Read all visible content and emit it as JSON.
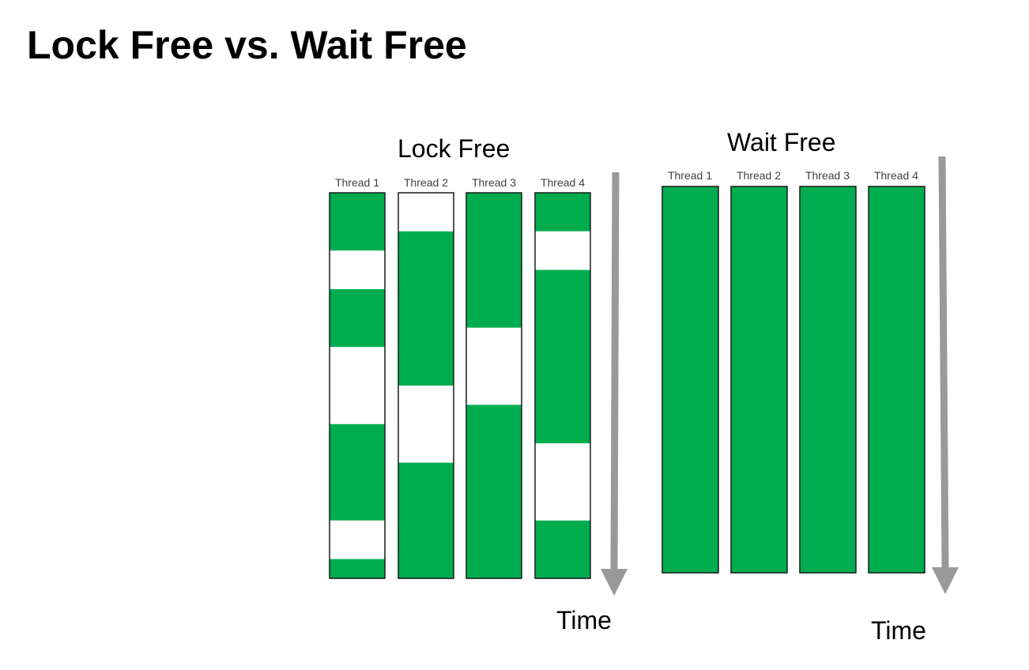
{
  "slide": {
    "title": "Lock Free vs. Wait Free"
  },
  "colors": {
    "running": "#00ad4e",
    "idle": "#ffffff",
    "border": "#1a1a1a",
    "time_arrow": "#999999"
  },
  "lock_free": {
    "title": "Lock Free",
    "time_label": "Time",
    "threads": [
      {
        "label": "Thread 1",
        "segments": [
          {
            "state": "running",
            "start": 0.0,
            "end": 0.15
          },
          {
            "state": "idle",
            "start": 0.15,
            "end": 0.25
          },
          {
            "state": "running",
            "start": 0.25,
            "end": 0.4
          },
          {
            "state": "idle",
            "start": 0.4,
            "end": 0.6
          },
          {
            "state": "running",
            "start": 0.6,
            "end": 0.85
          },
          {
            "state": "idle",
            "start": 0.85,
            "end": 0.95
          },
          {
            "state": "running",
            "start": 0.95,
            "end": 1.0
          }
        ]
      },
      {
        "label": "Thread 2",
        "segments": [
          {
            "state": "idle",
            "start": 0.0,
            "end": 0.1
          },
          {
            "state": "running",
            "start": 0.1,
            "end": 0.5
          },
          {
            "state": "idle",
            "start": 0.5,
            "end": 0.7
          },
          {
            "state": "running",
            "start": 0.7,
            "end": 1.0
          }
        ]
      },
      {
        "label": "Thread 3",
        "segments": [
          {
            "state": "running",
            "start": 0.0,
            "end": 0.35
          },
          {
            "state": "idle",
            "start": 0.35,
            "end": 0.55
          },
          {
            "state": "running",
            "start": 0.55,
            "end": 1.0
          }
        ]
      },
      {
        "label": "Thread 4",
        "segments": [
          {
            "state": "running",
            "start": 0.0,
            "end": 0.1
          },
          {
            "state": "idle",
            "start": 0.1,
            "end": 0.2
          },
          {
            "state": "running",
            "start": 0.2,
            "end": 0.65
          },
          {
            "state": "idle",
            "start": 0.65,
            "end": 0.85
          },
          {
            "state": "running",
            "start": 0.85,
            "end": 1.0
          }
        ]
      }
    ]
  },
  "wait_free": {
    "title": "Wait Free",
    "time_label": "Time",
    "threads": [
      {
        "label": "Thread 1",
        "segments": [
          {
            "state": "running",
            "start": 0.0,
            "end": 1.0
          }
        ]
      },
      {
        "label": "Thread 2",
        "segments": [
          {
            "state": "running",
            "start": 0.0,
            "end": 1.0
          }
        ]
      },
      {
        "label": "Thread 3",
        "segments": [
          {
            "state": "running",
            "start": 0.0,
            "end": 1.0
          }
        ]
      },
      {
        "label": "Thread 4",
        "segments": [
          {
            "state": "running",
            "start": 0.0,
            "end": 1.0
          }
        ]
      }
    ]
  }
}
